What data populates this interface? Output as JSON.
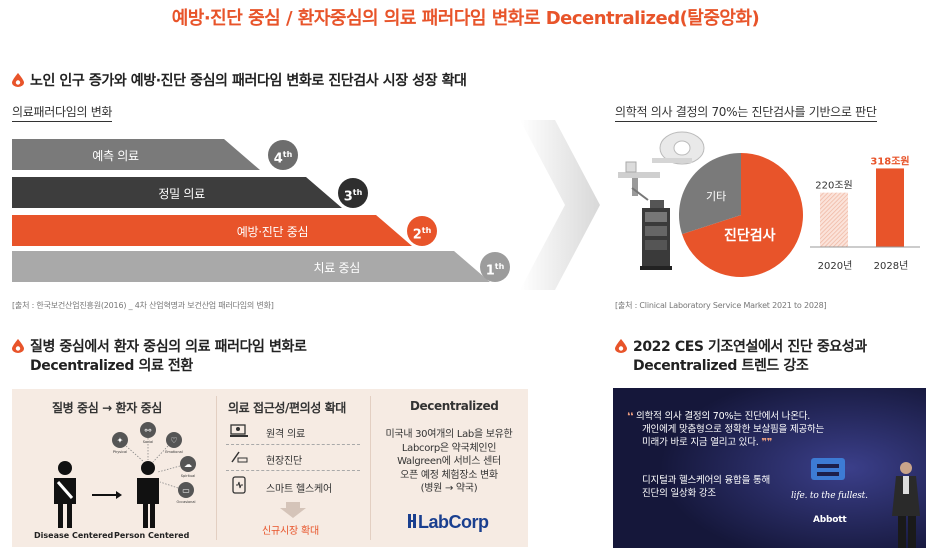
{
  "header": {
    "title": "예방·진단 중심 / 환자중심의 의료 패러다임 변화로 Decentralized(탈중앙화)"
  },
  "section1": {
    "heading": "노인 인구 증가와 예방·진단 중심의 패러다임 변화로 진단검사 시장 성장 확대",
    "subheading": "의료패러다임의 변화",
    "bars": [
      {
        "label": "예측 의료",
        "badge_num": "4",
        "badge_suffix": "th",
        "color": "#7a7a7a"
      },
      {
        "label": "정밀 의료",
        "badge_num": "3",
        "badge_suffix": "th",
        "color": "#3d3d3d"
      },
      {
        "label": "예방·진단 중심",
        "badge_num": "2",
        "badge_suffix": "th",
        "color": "#e8542a"
      },
      {
        "label": "치료 중심",
        "badge_num": "1",
        "badge_suffix": "th",
        "color": "#a9a9a9"
      }
    ],
    "source": "[출처 : 한국보건산업진흥원(2016) _ 4차 산업혁명과 보건산업 패러다임의 변화]"
  },
  "section2": {
    "subheading": "의학적 의사 결정의 70%는 진단검사를 기반으로 판단",
    "pie_labels": {
      "other": "기타",
      "main": "진단검사"
    },
    "source": "[출처 : Clinical Laboratory Service Market 2021 to 2028]",
    "chart_data": {
      "type": "bar",
      "categories": [
        "2020년",
        "2028년"
      ],
      "values": [
        220,
        318
      ],
      "value_labels": [
        "220조원",
        "318조원"
      ],
      "colors": [
        "#f2c4b4",
        "#e8542a"
      ],
      "ylim": [
        0,
        340
      ]
    },
    "pie_data": {
      "type": "pie",
      "values": [
        70,
        30
      ],
      "colors": [
        "#e8542a",
        "#7a7a7a"
      ]
    }
  },
  "section3": {
    "heading_line1": "질병 중심에서 환자 중심의 의료 패러다임 변화로",
    "heading_line2": "Decentralized 의료 전환",
    "col1": {
      "title": "질병 중심 → 환자 중심",
      "icon_labels": [
        "Physical",
        "Social",
        "Emotional",
        "Spiritual",
        "Occasional"
      ],
      "left_caption": "Disease Centered",
      "right_caption": "Person Centered"
    },
    "col2": {
      "title": "의료 접근성/편의성 확대",
      "items": [
        "원격 의료",
        "현장진단",
        "스마트 헬스케어"
      ],
      "result": "신규시장 확대"
    },
    "col3": {
      "title": "Decentralized",
      "lines": [
        "미국내 30여개의 Lab을 보유한",
        "Labcorp은 약국체인인",
        "Walgreen에 서비스 센터",
        "오픈 예정 체험장소 변화",
        "(병원 → 약국)"
      ],
      "logo": "LabCorp"
    }
  },
  "section4": {
    "heading_line1": "2022 CES 기조연설에서 진단 중요성과",
    "heading_line2": "Decentralized 트렌드 강조",
    "quote_lines": [
      "의학적 의사 결정의 70%는 진단에서 나온다.",
      "개인에게 맞춤형으로 정확한 보살핌을 제공하는",
      "미래가 바로 지금 열리고 있다."
    ],
    "quote_open": "❛❛",
    "quote_close": "❞❞",
    "body_lines": [
      "디지털과 헬스케어의 융합을 통해",
      "진단의 일상화 강조"
    ],
    "tagline": "life. to the fullest.",
    "brand": "Abbott"
  },
  "colors": {
    "accent": "#e8542a",
    "dark": "#3d3d3d",
    "grey": "#7a7a7a"
  }
}
